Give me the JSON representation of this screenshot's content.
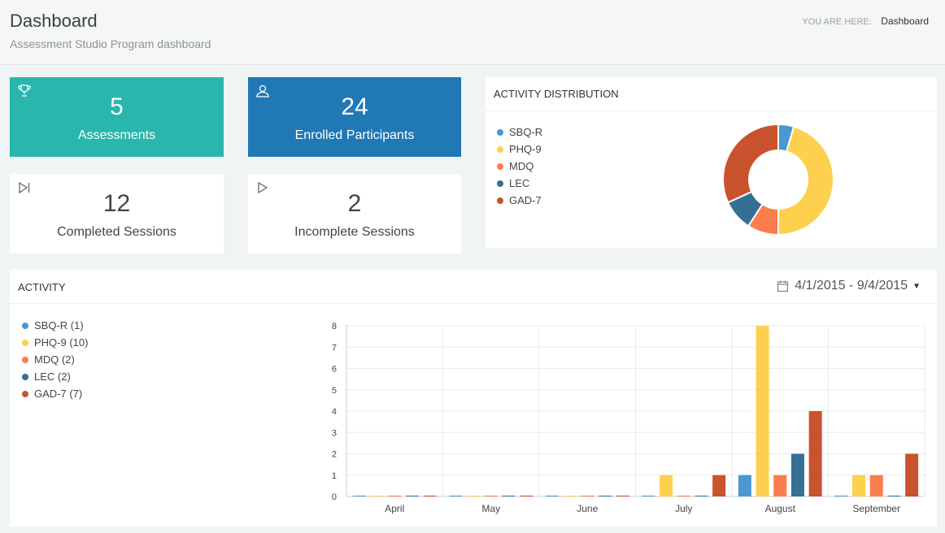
{
  "header": {
    "title": "Dashboard",
    "subtitle": "Assessment Studio Program dashboard",
    "breadcrumb_label": "YOU ARE HERE:",
    "breadcrumb_current": "Dashboard"
  },
  "tiles": [
    {
      "value": "5",
      "label": "Assessments",
      "icon": "trophy-icon",
      "color": "#29b6ad"
    },
    {
      "value": "24",
      "label": "Enrolled Participants",
      "icon": "user-icon",
      "color": "#2078b5"
    },
    {
      "value": "12",
      "label": "Completed Sessions",
      "icon": "skip-forward-icon",
      "color": "#ffffff"
    },
    {
      "value": "2",
      "label": "Incomplete Sessions",
      "icon": "play-icon",
      "color": "#ffffff"
    }
  ],
  "distribution": {
    "title": "ACTIVITY DISTRIBUTION",
    "legend": [
      "SBQ-R",
      "PHQ-9",
      "MDQ",
      "LEC",
      "GAD-7"
    ]
  },
  "activity": {
    "title": "ACTIVITY",
    "date_range": "4/1/2015 - 9/4/2015",
    "legend": [
      "SBQ-R (1)",
      "PHQ-9 (10)",
      "MDQ (2)",
      "LEC (2)",
      "GAD-7 (7)"
    ]
  },
  "colors": {
    "SBQ-R": "#4a98cf",
    "PHQ-9": "#fdd04d",
    "MDQ": "#fb7d4e",
    "LEC": "#356f95",
    "GAD-7": "#c9532c"
  },
  "chart_data": [
    {
      "type": "pie",
      "title": "",
      "donut": true,
      "categories": [
        "SBQ-R",
        "PHQ-9",
        "MDQ",
        "LEC",
        "GAD-7"
      ],
      "values": [
        1,
        10,
        2,
        2,
        7
      ],
      "legend_position": "left"
    },
    {
      "type": "bar",
      "title": "",
      "categories": [
        "April",
        "May",
        "June",
        "July",
        "August",
        "September"
      ],
      "series": [
        {
          "name": "SBQ-R",
          "values": [
            0,
            0,
            0,
            0,
            1,
            0
          ]
        },
        {
          "name": "PHQ-9",
          "values": [
            0,
            0,
            0,
            1,
            8,
            1
          ]
        },
        {
          "name": "MDQ",
          "values": [
            0,
            0,
            0,
            0,
            1,
            1
          ]
        },
        {
          "name": "LEC",
          "values": [
            0,
            0,
            0,
            0,
            2,
            0
          ]
        },
        {
          "name": "GAD-7",
          "values": [
            0,
            0,
            0,
            1,
            4,
            2
          ]
        }
      ],
      "ylim": [
        0,
        8
      ],
      "yticks": [
        "0",
        "1",
        "2",
        "3",
        "4",
        "5",
        "6",
        "7",
        "8"
      ],
      "grid": true,
      "legend_position": "left"
    }
  ]
}
